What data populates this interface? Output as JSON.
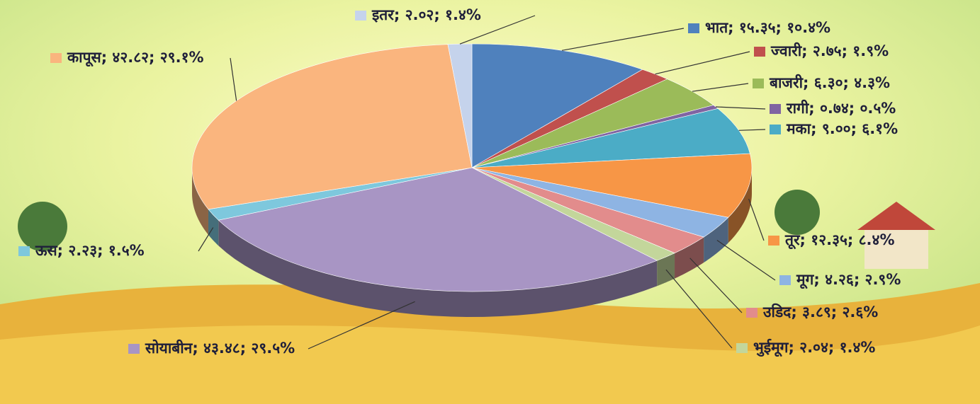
{
  "chart_data": {
    "type": "pie",
    "value_labels": [
      "भात; १५.३५; १०.४%",
      "ज्वारी; २.७५; १.९%",
      "बाजरी; ६.३०; ४.३%",
      "रागी; ०.७४; ०.५%",
      "मका; ९.००; ६.१%",
      "तूर; १२.३५; ८.४%",
      "मूग; ४.२६; २.९%",
      "उडिद; ३.८९; २.६%",
      "भुईमूग; २.०४; १.४%",
      "सोयाबीन; ४३.४८; २९.५%",
      "ऊस; २.२३; १.५%",
      "कापूस; ४२.८२; २९.१%",
      "इतर; २.०२; १.४%"
    ],
    "values": [
      15.35,
      2.75,
      6.3,
      0.74,
      9.0,
      12.35,
      4.26,
      3.89,
      2.04,
      43.48,
      2.23,
      42.82,
      2.02
    ],
    "colors": [
      "#4f81bd",
      "#c0504d",
      "#9bbb59",
      "#8064a2",
      "#4bacc6",
      "#f79646",
      "#8eb4e3",
      "#e28c8c",
      "#c3d69b",
      "#a895c4",
      "#7ec8dd",
      "#fab57e",
      "#c5d3ec"
    ]
  }
}
